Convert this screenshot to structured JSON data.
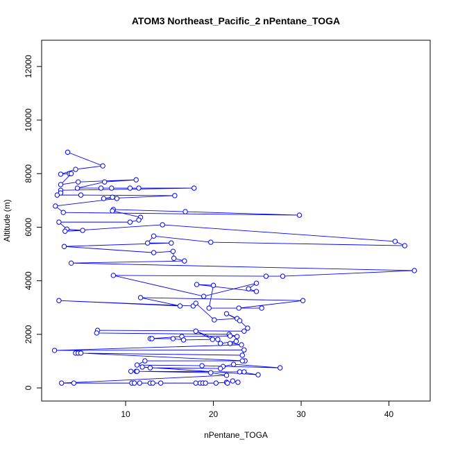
{
  "chart_data": {
    "type": "line",
    "title": "ATOM3 Northeast_Pacific_2 nPentane_TOGA",
    "x_label": "nPentane_TOGA",
    "y_label": "Altitude (m)",
    "xlim": [
      0.43,
      44.7
    ],
    "ylim": [
      -490,
      12980
    ],
    "xticks": [
      10,
      20,
      30,
      40
    ],
    "yticks": [
      0,
      2000,
      4000,
      6000,
      8000,
      10000,
      12000
    ],
    "markers": true,
    "x": [
      3.4,
      7.4,
      4.3,
      2.6,
      3.6,
      3.8,
      2.6,
      4.6,
      11.2,
      7.6,
      4.5,
      7.2,
      8.4,
      10.5,
      11.5,
      17.8,
      2.6,
      2.6,
      2.2,
      4.9,
      15.6,
      7.5,
      8.5,
      9.0,
      2.0,
      2.9,
      29.8,
      16.8,
      8.6,
      8.5,
      11.7,
      11.5,
      10.5,
      2.4,
      3.3,
      5.1,
      3.1,
      14.2,
      40.7,
      41.8,
      19.7,
      13.2,
      12.5,
      15.2,
      3.0,
      13.2,
      15.4,
      15.5,
      16.7,
      3.8,
      42.9,
      27.9,
      26.0,
      8.6,
      18.9,
      24.9,
      24.0,
      24.9,
      18.1,
      20.0,
      19.5,
      25.5,
      22.9,
      30.2,
      11.7,
      16.2,
      2.4,
      17.7,
      18.0,
      20.1,
      22.7,
      21.5,
      23.0,
      23.9,
      23.5,
      6.8,
      6.7,
      21.8,
      22.7,
      21.9,
      16.4,
      12.8,
      13.0,
      15.4,
      16.6,
      19.9,
      18.0,
      20.5,
      20.8,
      22.6,
      21.9,
      23.2,
      1.9,
      23.5,
      23.3,
      4.3,
      4.6,
      4.9,
      23.6,
      23.3,
      12.2,
      11.3,
      18.7,
      27.6,
      22.3,
      21.1,
      20.8,
      12.8,
      11.9,
      25.1,
      23.0,
      23.5,
      10.6,
      11.2,
      11.3,
      19.7,
      21.5,
      2.7,
      4.1,
      10.7,
      11.0,
      11.6,
      12.8,
      13.1,
      14.0,
      18.0,
      18.5,
      18.8,
      19.1,
      20.3,
      21.5,
      21.6,
      22.2,
      22.8
    ],
    "series": [
      {
        "name": "nPentane_TOGA",
        "color": "#0000ff",
        "values": [
          8800,
          8290,
          8160,
          7980,
          8000,
          8000,
          7590,
          7690,
          7770,
          7690,
          7460,
          7460,
          7460,
          7460,
          7460,
          7460,
          7380,
          7280,
          7200,
          7200,
          7180,
          7070,
          7120,
          7070,
          6790,
          6550,
          6450,
          6580,
          6660,
          6610,
          6370,
          6270,
          6190,
          6190,
          5930,
          5880,
          5850,
          6090,
          5470,
          5310,
          5440,
          5670,
          5410,
          5410,
          5280,
          5050,
          5100,
          4840,
          4740,
          4660,
          4380,
          4170,
          4170,
          4200,
          3420,
          3910,
          3700,
          3600,
          3860,
          3830,
          2980,
          2980,
          2980,
          3260,
          3370,
          3060,
          3260,
          3060,
          3160,
          2540,
          2590,
          2770,
          2510,
          2230,
          2120,
          2150,
          2050,
          2000,
          1920,
          1940,
          1920,
          1840,
          1840,
          1840,
          1790,
          1810,
          2120,
          1810,
          1660,
          1740,
          1660,
          1610,
          1400,
          1420,
          1220,
          1300,
          1300,
          1300,
          1010,
          1010,
          1010,
          855,
          830,
          750,
          880,
          800,
          725,
          750,
          780,
          490,
          600,
          600,
          620,
          620,
          620,
          570,
          470,
          180,
          180,
          180,
          180,
          180,
          180,
          180,
          180,
          180,
          180,
          180,
          180,
          180,
          210,
          180,
          260,
          210
        ]
      }
    ]
  }
}
